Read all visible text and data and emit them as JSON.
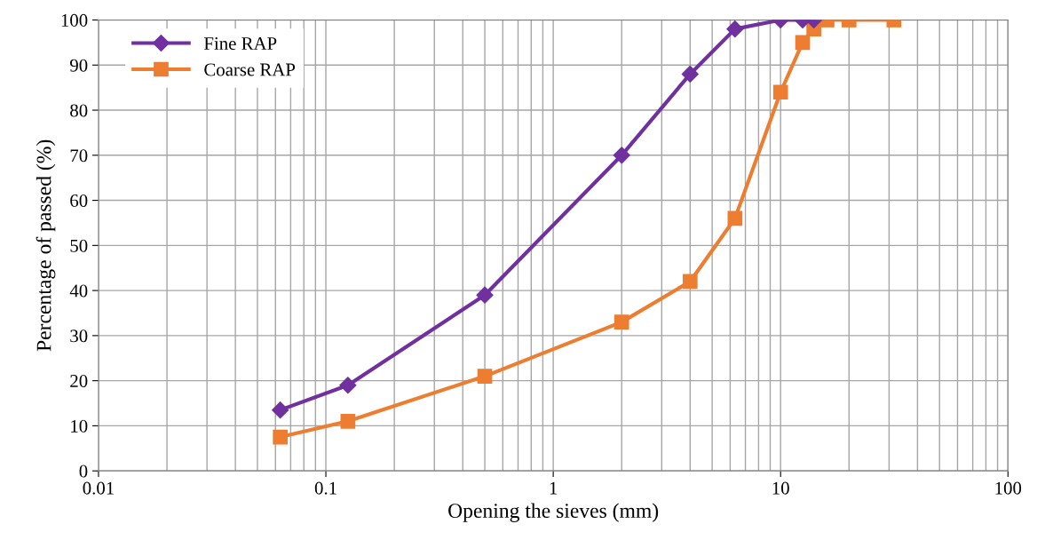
{
  "chart_data": {
    "type": "line",
    "xlabel": "Opening the sieves (mm)",
    "ylabel": "Percentage of passed (%)",
    "log": "x",
    "xlim": [
      0.01,
      100
    ],
    "xticks": [
      0.01,
      0.1,
      1,
      10,
      100
    ],
    "ylim": [
      0,
      100
    ],
    "yticks": [
      0,
      10,
      20,
      30,
      40,
      50,
      60,
      70,
      80,
      90,
      100
    ],
    "grid": true,
    "legend": "top left",
    "line_style": "solid",
    "series": [
      {
        "name": "Fine RAP",
        "color": "#7030a0",
        "marker": "diamond",
        "x": [
          0.063,
          0.125,
          0.5,
          2,
          4,
          6.3,
          10,
          12.5,
          14
        ],
        "values": [
          13.5,
          19,
          39,
          70,
          88,
          98,
          100,
          100,
          100
        ]
      },
      {
        "name": "Coarse RAP",
        "color": "#ed7d31",
        "marker": "square",
        "x": [
          0.063,
          0.125,
          0.5,
          2,
          4,
          6.3,
          10,
          12.5,
          14,
          16,
          20,
          31.5
        ],
        "values": [
          7.5,
          11,
          21,
          33,
          42,
          56,
          84,
          95,
          98,
          100,
          100,
          100
        ]
      }
    ]
  }
}
